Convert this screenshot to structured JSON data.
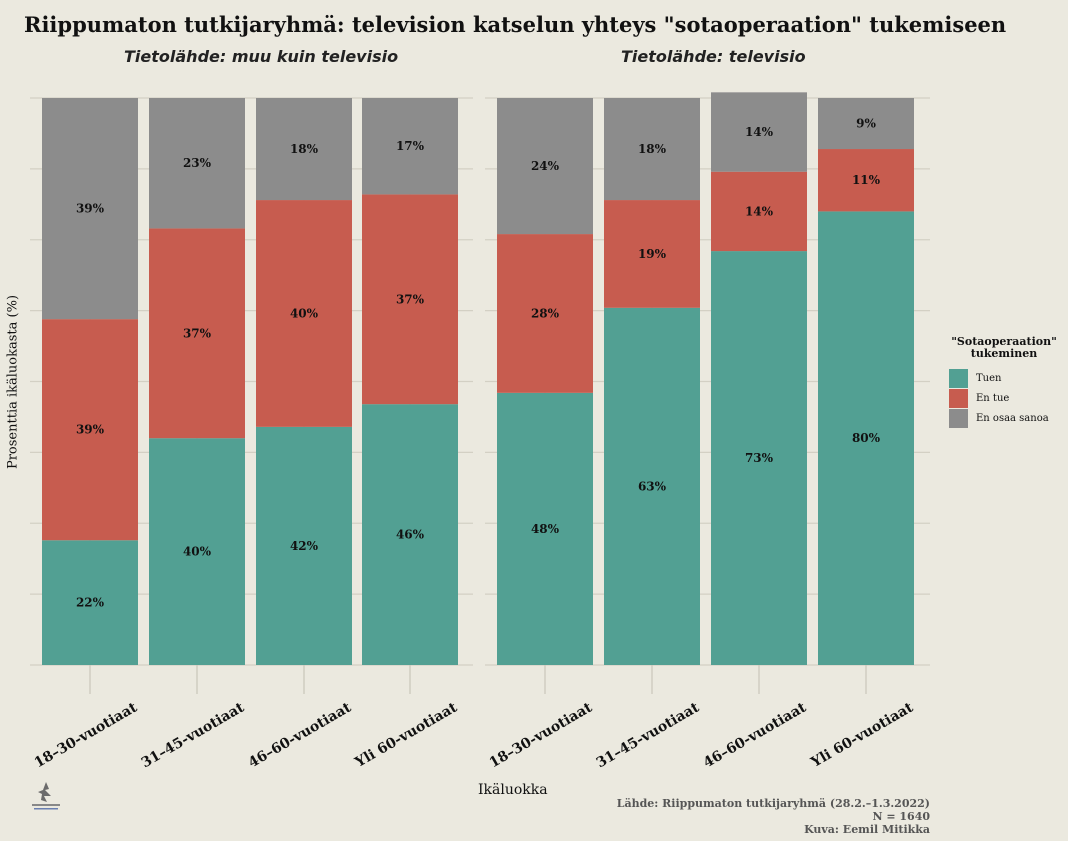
{
  "chart_data": {
    "type": "bar",
    "stacked": true,
    "title": "Riippumaton tutkijaryhmä: television katselun yhteys \"sotaoperaation\" tukemiseen",
    "ylabel": "Prosenttia ikäluokasta (%)",
    "xlabel": "Ikäluokka",
    "ylim": [
      0,
      100
    ],
    "categories": [
      "18–30-vuotiaat",
      "31–45-vuotiaat",
      "46–60-vuotiaat",
      "Yli 60-vuotiaat"
    ],
    "legend": {
      "title": "\"Sotaoperaation\" tukeminen",
      "title_line1": "\"Sotaoperaation\"",
      "title_line2": "tukeminen",
      "position": "right"
    },
    "colors": {
      "Tuen": "#52a093",
      "En tue": "#c75c4f",
      "En osaa sanoa": "#8c8c8c"
    },
    "panels": [
      {
        "title": "Tietolähde: muu kuin televisio",
        "series": [
          {
            "name": "Tuen",
            "values": [
              22,
              40,
              42,
              46
            ],
            "labels": [
              "22%",
              "40%",
              "42%",
              "46%"
            ]
          },
          {
            "name": "En tue",
            "values": [
              39,
              37,
              40,
              37
            ],
            "labels": [
              "39%",
              "37%",
              "40%",
              "37%"
            ]
          },
          {
            "name": "En osaa sanoa",
            "values": [
              39,
              23,
              18,
              17
            ],
            "labels": [
              "39%",
              "23%",
              "18%",
              "17%"
            ]
          }
        ]
      },
      {
        "title": "Tietolähde: televisio",
        "series": [
          {
            "name": "Tuen",
            "values": [
              48,
              63,
              73,
              80
            ],
            "labels": [
              "48%",
              "63%",
              "73%",
              "80%"
            ]
          },
          {
            "name": "En tue",
            "values": [
              28,
              19,
              14,
              11
            ],
            "labels": [
              "28%",
              "19%",
              "14%",
              "11%"
            ]
          },
          {
            "name": "En osaa sanoa",
            "values": [
              24,
              18,
              14,
              9
            ],
            "labels": [
              "24%",
              "18%",
              "14%",
              "9%"
            ]
          }
        ]
      }
    ]
  },
  "footer": {
    "source": "Lähde: Riippumaton tutkijaryhmä (28.2.–1.3.2022)",
    "n": "N = 1640",
    "credit": "Kuva: Eemil Mitikka"
  }
}
